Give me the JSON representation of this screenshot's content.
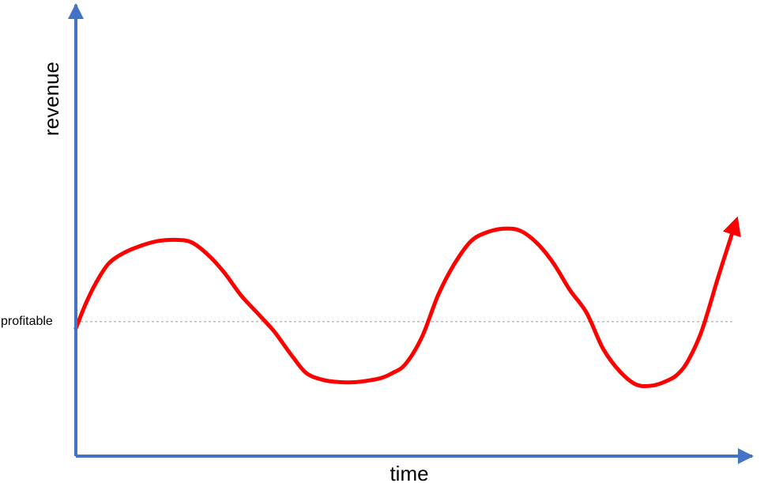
{
  "chart_data": {
    "type": "line",
    "title": "",
    "xlabel": "time",
    "ylabel": "revenue",
    "x": [
      0,
      0.3,
      0.6,
      1.0,
      1.5,
      2.0,
      2.5,
      3.0,
      3.5,
      4.0,
      4.5,
      5.0,
      5.5,
      6.0,
      6.3,
      6.6,
      7.0,
      7.5,
      8.0,
      8.5,
      9.0,
      9.3,
      9.6,
      10.0,
      10.5,
      11.0,
      11.5,
      12.0,
      12.5,
      13.0,
      13.5,
      14.0,
      14.5,
      15.0,
      15.5,
      16.0,
      16.5,
      17.0,
      17.5,
      18.0,
      18.3,
      18.6,
      19.0,
      19.5,
      20.0
    ],
    "series": [
      {
        "values": [
          -0.3,
          0.8,
          1.7,
          2.6,
          3.1,
          3.4,
          3.6,
          3.65,
          3.55,
          3.0,
          2.2,
          1.2,
          0.4,
          -0.4,
          -1.0,
          -1.6,
          -2.3,
          -2.6,
          -2.7,
          -2.7,
          -2.6,
          -2.5,
          -2.3,
          -1.9,
          -0.7,
          1.2,
          2.6,
          3.6,
          4.0,
          4.15,
          4.05,
          3.5,
          2.6,
          1.4,
          0.4,
          -1.2,
          -2.2,
          -2.8,
          -2.85,
          -2.6,
          -2.3,
          -1.7,
          -0.4,
          2.0,
          4.3
        ]
      }
    ],
    "reference_line": {
      "label": "profitable",
      "y": 0
    },
    "xlim": [
      0,
      20
    ],
    "ylim": [
      -6,
      14
    ],
    "grid": false,
    "colors": {
      "axis": "#4472c4",
      "line": "#ff0000",
      "reference": "#999999"
    }
  }
}
